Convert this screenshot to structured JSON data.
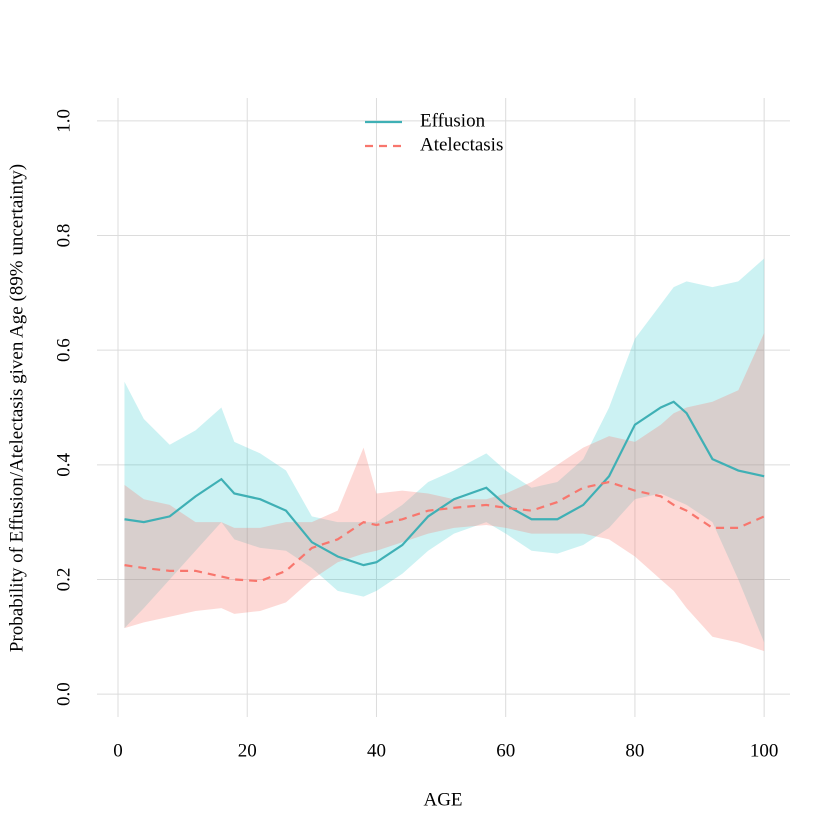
{
  "chart_data": {
    "type": "line",
    "y_label": "Probability of Effusion/Atelectasis given Age (89% uncertainty)",
    "x_label": "AGE",
    "x": [
      1,
      4,
      8,
      12,
      16,
      18,
      22,
      26,
      30,
      34,
      38,
      40,
      44,
      48,
      52,
      57,
      60,
      64,
      68,
      72,
      76,
      80,
      84,
      86,
      88,
      92,
      96,
      100
    ],
    "series": [
      {
        "name": "Effusion",
        "color": "#3fb0b5",
        "band_color": "#00bfc4",
        "dash": "none",
        "values": [
          0.305,
          0.3,
          0.31,
          0.345,
          0.375,
          0.35,
          0.34,
          0.32,
          0.265,
          0.24,
          0.225,
          0.23,
          0.26,
          0.31,
          0.34,
          0.36,
          0.33,
          0.305,
          0.305,
          0.33,
          0.38,
          0.47,
          0.5,
          0.51,
          0.49,
          0.41,
          0.39,
          0.38
        ],
        "upper": [
          0.545,
          0.48,
          0.435,
          0.46,
          0.5,
          0.44,
          0.42,
          0.39,
          0.31,
          0.3,
          0.3,
          0.3,
          0.33,
          0.37,
          0.39,
          0.42,
          0.39,
          0.36,
          0.37,
          0.41,
          0.5,
          0.62,
          0.68,
          0.71,
          0.72,
          0.71,
          0.72,
          0.76
        ],
        "lower": [
          0.115,
          0.15,
          0.2,
          0.25,
          0.3,
          0.27,
          0.255,
          0.25,
          0.22,
          0.18,
          0.17,
          0.18,
          0.21,
          0.25,
          0.28,
          0.3,
          0.28,
          0.25,
          0.245,
          0.26,
          0.29,
          0.34,
          0.35,
          0.34,
          0.33,
          0.3,
          0.2,
          0.09
        ]
      },
      {
        "name": "Atelectasis",
        "color": "#f8766d",
        "band_color": "#f8766d",
        "dash": "8 6",
        "values": [
          0.225,
          0.22,
          0.215,
          0.215,
          0.205,
          0.2,
          0.197,
          0.215,
          0.255,
          0.27,
          0.3,
          0.295,
          0.305,
          0.32,
          0.325,
          0.33,
          0.325,
          0.32,
          0.335,
          0.36,
          0.37,
          0.355,
          0.345,
          0.33,
          0.32,
          0.29,
          0.29,
          0.31
        ],
        "upper": [
          0.365,
          0.34,
          0.33,
          0.3,
          0.3,
          0.29,
          0.29,
          0.3,
          0.3,
          0.32,
          0.43,
          0.35,
          0.355,
          0.35,
          0.34,
          0.34,
          0.35,
          0.37,
          0.4,
          0.43,
          0.45,
          0.44,
          0.47,
          0.49,
          0.5,
          0.51,
          0.53,
          0.63
        ],
        "lower": [
          0.115,
          0.125,
          0.135,
          0.145,
          0.15,
          0.14,
          0.145,
          0.16,
          0.2,
          0.23,
          0.245,
          0.25,
          0.265,
          0.28,
          0.29,
          0.295,
          0.29,
          0.28,
          0.28,
          0.28,
          0.27,
          0.24,
          0.2,
          0.18,
          0.15,
          0.1,
          0.09,
          0.075
        ]
      }
    ],
    "xlim": [
      -3.25,
      104
    ],
    "ylim": [
      -0.04,
      1.04
    ],
    "xticks": [
      0,
      20,
      40,
      60,
      80,
      100
    ],
    "yticks": [
      {
        "value": 0,
        "label": "0.0"
      },
      {
        "value": 0.2,
        "label": "0.2"
      },
      {
        "value": 0.4,
        "label": "0.4"
      },
      {
        "value": 0.6,
        "label": "0.6"
      },
      {
        "value": 0.8,
        "label": "0.8"
      },
      {
        "value": 1,
        "label": "1.0"
      }
    ],
    "grid": true,
    "legend": "top"
  }
}
